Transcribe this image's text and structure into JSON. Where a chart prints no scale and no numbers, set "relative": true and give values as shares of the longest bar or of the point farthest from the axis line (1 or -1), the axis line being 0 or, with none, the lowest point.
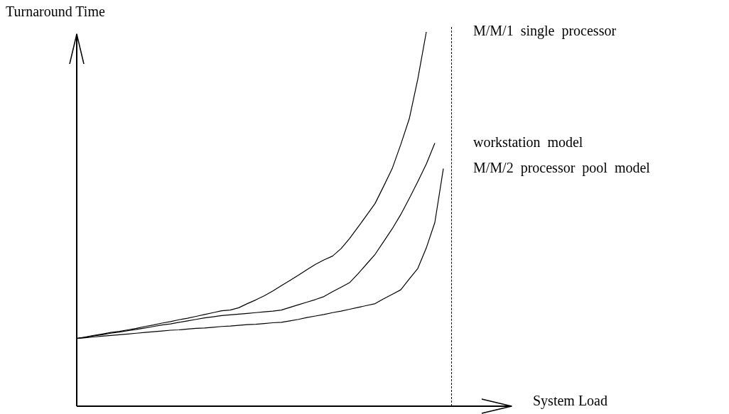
{
  "chart_data": {
    "type": "line",
    "relative": true,
    "xlabel": "System Load",
    "ylabel": "Turnaround Time",
    "legend": false,
    "marker": "none",
    "line_style": "solid",
    "categories": [
      null,
      null,
      null,
      null,
      null,
      null,
      null,
      null,
      null,
      null,
      null,
      null,
      null,
      null,
      null,
      null,
      null,
      null,
      null,
      null,
      null,
      null,
      null,
      null,
      null,
      null,
      null,
      null,
      null,
      null,
      null,
      null,
      null,
      null,
      null,
      null,
      null,
      null,
      null,
      null,
      null,
      null,
      null,
      null,
      null,
      null,
      null,
      null,
      null,
      null,
      null,
      null
    ],
    "series": [
      {
        "name": "M/M/1  single  processor",
        "color": "#000000",
        "values": [
          0.181,
          0.185,
          0.189,
          0.193,
          0.197,
          0.2,
          0.204,
          0.208,
          0.213,
          0.217,
          0.222,
          0.226,
          0.231,
          0.235,
          0.24,
          0.245,
          0.25,
          0.255,
          0.257,
          0.263,
          0.274,
          0.284,
          0.295,
          0.308,
          0.322,
          0.336,
          0.35,
          0.365,
          0.379,
          0.391,
          0.401,
          0.421,
          0.448,
          0.479,
          0.51,
          0.542,
          0.588,
          0.635,
          0.699,
          0.768,
          0.874,
          1.0,
          null,
          null,
          null,
          null,
          null,
          null,
          null,
          null,
          null,
          null
        ]
      },
      {
        "name": "workstation  model",
        "color": "#000000",
        "values": [
          0.181,
          0.184,
          0.188,
          0.191,
          0.195,
          0.198,
          0.202,
          0.205,
          0.209,
          0.213,
          0.217,
          0.22,
          0.224,
          0.228,
          0.232,
          0.236,
          0.239,
          0.242,
          0.244,
          0.246,
          0.248,
          0.25,
          0.252,
          0.254,
          0.257,
          0.264,
          0.271,
          0.278,
          0.285,
          0.293,
          0.306,
          0.318,
          0.33,
          0.354,
          0.38,
          0.406,
          0.44,
          0.474,
          0.512,
          0.555,
          0.6,
          0.647,
          0.703,
          null,
          null,
          null,
          null,
          null,
          null,
          null,
          null,
          null
        ]
      },
      {
        "name": "M/M/2  processor  pool  model",
        "color": "#000000",
        "values": [
          0.181,
          0.183,
          0.185,
          0.187,
          0.189,
          0.191,
          0.193,
          0.195,
          0.197,
          0.199,
          0.201,
          0.203,
          0.204,
          0.206,
          0.208,
          0.209,
          0.211,
          0.213,
          0.214,
          0.216,
          0.218,
          0.219,
          0.221,
          0.223,
          0.224,
          0.228,
          0.232,
          0.237,
          0.241,
          0.245,
          0.25,
          0.254,
          0.259,
          0.264,
          0.269,
          0.274,
          0.287,
          0.299,
          0.311,
          0.34,
          0.368,
          0.423,
          0.491,
          0.635,
          null,
          null,
          null,
          null,
          null,
          null,
          null,
          null
        ]
      }
    ]
  }
}
